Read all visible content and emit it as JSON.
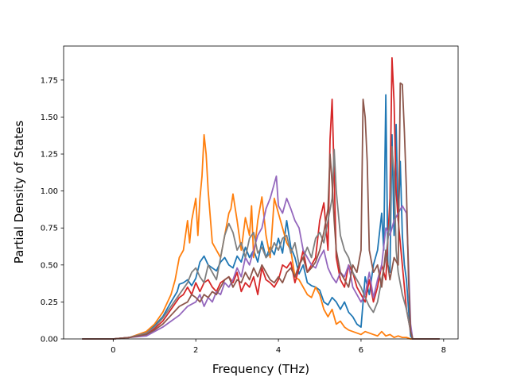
{
  "chart_data": {
    "type": "line",
    "title": "",
    "xlabel": "Frequency (THz)",
    "ylabel": "Partial Density of States",
    "xlim": [
      -1.2,
      8.35
    ],
    "ylim": [
      0.0,
      1.98
    ],
    "xticks": [
      0,
      2,
      4,
      6,
      8
    ],
    "xtick_labels": [
      "0",
      "2",
      "4",
      "6",
      "8"
    ],
    "yticks": [
      0.0,
      0.25,
      0.5,
      0.75,
      1.0,
      1.25,
      1.5,
      1.75
    ],
    "ytick_labels": [
      "0.00",
      "0.25",
      "0.50",
      "0.75",
      "1.00",
      "1.25",
      "1.50",
      "1.75"
    ],
    "grid": false,
    "legend": "none",
    "series": [
      {
        "color": "#1f77b4",
        "x": [
          -0.75,
          0,
          0.4,
          0.8,
          1.0,
          1.2,
          1.4,
          1.55,
          1.6,
          1.7,
          1.8,
          1.9,
          2.0,
          2.1,
          2.2,
          2.3,
          2.4,
          2.5,
          2.6,
          2.7,
          2.8,
          2.9,
          3.0,
          3.1,
          3.2,
          3.3,
          3.4,
          3.5,
          3.6,
          3.7,
          3.8,
          3.9,
          4.0,
          4.1,
          4.2,
          4.3,
          4.4,
          4.5,
          4.6,
          4.7,
          4.8,
          4.9,
          5.0,
          5.1,
          5.2,
          5.3,
          5.4,
          5.5,
          5.6,
          5.7,
          5.8,
          5.9,
          6.0,
          6.1,
          6.2,
          6.3,
          6.4,
          6.5,
          6.55,
          6.6,
          6.65,
          6.7,
          6.75,
          6.8,
          6.85,
          6.9,
          6.95,
          7.0,
          7.05,
          7.1,
          7.15,
          7.2,
          7.25,
          7.9
        ],
        "y": [
          0,
          0,
          0.01,
          0.04,
          0.09,
          0.15,
          0.25,
          0.32,
          0.37,
          0.38,
          0.4,
          0.36,
          0.41,
          0.52,
          0.56,
          0.5,
          0.48,
          0.46,
          0.52,
          0.55,
          0.5,
          0.48,
          0.56,
          0.52,
          0.62,
          0.55,
          0.6,
          0.52,
          0.66,
          0.55,
          0.62,
          0.57,
          0.68,
          0.58,
          0.8,
          0.62,
          0.55,
          0.44,
          0.5,
          0.38,
          0.36,
          0.35,
          0.33,
          0.25,
          0.23,
          0.28,
          0.25,
          0.2,
          0.25,
          0.18,
          0.15,
          0.1,
          0.08,
          0.42,
          0.3,
          0.5,
          0.6,
          0.85,
          0.6,
          1.65,
          0.5,
          0.45,
          1.38,
          0.7,
          1.45,
          0.8,
          1.2,
          0.7,
          0.5,
          0.4,
          0.2,
          0.02,
          0,
          0
        ]
      },
      {
        "color": "#ff7f0e",
        "x": [
          -0.75,
          0,
          0.4,
          0.8,
          1.0,
          1.2,
          1.4,
          1.5,
          1.6,
          1.7,
          1.8,
          1.85,
          1.9,
          2.0,
          2.05,
          2.1,
          2.15,
          2.2,
          2.25,
          2.3,
          2.4,
          2.5,
          2.6,
          2.7,
          2.8,
          2.85,
          2.9,
          3.0,
          3.1,
          3.2,
          3.3,
          3.35,
          3.4,
          3.5,
          3.6,
          3.7,
          3.8,
          3.9,
          4.0,
          4.1,
          4.2,
          4.3,
          4.4,
          4.5,
          4.6,
          4.7,
          4.8,
          4.9,
          5.0,
          5.1,
          5.2,
          5.3,
          5.4,
          5.5,
          5.6,
          5.7,
          5.8,
          5.9,
          6.0,
          6.1,
          6.2,
          6.3,
          6.4,
          6.5,
          6.6,
          6.7,
          6.8,
          6.9,
          7.0,
          7.1,
          7.2,
          7.25,
          7.9
        ],
        "y": [
          0,
          0,
          0.01,
          0.05,
          0.1,
          0.18,
          0.3,
          0.4,
          0.55,
          0.6,
          0.8,
          0.65,
          0.8,
          0.95,
          0.7,
          0.95,
          1.1,
          1.38,
          1.25,
          1.0,
          0.65,
          0.6,
          0.55,
          0.7,
          0.85,
          0.88,
          0.98,
          0.8,
          0.6,
          0.82,
          0.7,
          0.9,
          0.55,
          0.8,
          0.96,
          0.7,
          0.55,
          0.95,
          0.85,
          0.75,
          0.65,
          0.6,
          0.42,
          0.4,
          0.35,
          0.3,
          0.28,
          0.35,
          0.3,
          0.2,
          0.15,
          0.2,
          0.1,
          0.12,
          0.08,
          0.06,
          0.05,
          0.04,
          0.03,
          0.05,
          0.04,
          0.03,
          0.02,
          0.05,
          0.02,
          0.03,
          0.01,
          0.02,
          0.01,
          0.01,
          0,
          0,
          0
        ]
      },
      {
        "color": "#d62728",
        "x": [
          -0.75,
          0,
          0.4,
          0.8,
          1.0,
          1.2,
          1.4,
          1.6,
          1.7,
          1.8,
          1.9,
          2.0,
          2.1,
          2.2,
          2.3,
          2.4,
          2.5,
          2.6,
          2.7,
          2.8,
          2.9,
          3.0,
          3.1,
          3.2,
          3.3,
          3.4,
          3.5,
          3.6,
          3.7,
          3.8,
          3.9,
          4.0,
          4.1,
          4.2,
          4.3,
          4.4,
          4.5,
          4.6,
          4.7,
          4.8,
          4.9,
          5.0,
          5.1,
          5.2,
          5.25,
          5.3,
          5.35,
          5.4,
          5.5,
          5.6,
          5.7,
          5.8,
          5.9,
          6.0,
          6.1,
          6.2,
          6.3,
          6.4,
          6.5,
          6.6,
          6.7,
          6.75,
          6.8,
          6.85,
          6.9,
          7.0,
          7.1,
          7.2,
          7.25,
          7.9
        ],
        "y": [
          0,
          0,
          0.01,
          0.03,
          0.07,
          0.12,
          0.2,
          0.28,
          0.3,
          0.35,
          0.3,
          0.38,
          0.32,
          0.38,
          0.4,
          0.35,
          0.32,
          0.38,
          0.4,
          0.42,
          0.38,
          0.45,
          0.32,
          0.38,
          0.35,
          0.42,
          0.3,
          0.48,
          0.4,
          0.38,
          0.35,
          0.4,
          0.5,
          0.48,
          0.52,
          0.38,
          0.48,
          0.6,
          0.45,
          0.5,
          0.55,
          0.8,
          0.92,
          0.6,
          1.35,
          1.62,
          1.1,
          0.55,
          0.4,
          0.35,
          0.5,
          0.45,
          0.35,
          0.3,
          0.25,
          0.4,
          0.25,
          0.35,
          0.5,
          0.4,
          0.95,
          1.9,
          1.6,
          1.0,
          0.8,
          0.5,
          0.2,
          0.05,
          0,
          0
        ]
      },
      {
        "color": "#9467bd",
        "x": [
          -0.75,
          0,
          0.4,
          0.8,
          1.0,
          1.2,
          1.4,
          1.6,
          1.8,
          2.0,
          2.1,
          2.2,
          2.3,
          2.4,
          2.5,
          2.6,
          2.7,
          2.8,
          2.9,
          3.0,
          3.1,
          3.2,
          3.3,
          3.4,
          3.5,
          3.6,
          3.7,
          3.8,
          3.9,
          3.95,
          4.0,
          4.1,
          4.2,
          4.3,
          4.4,
          4.5,
          4.6,
          4.7,
          4.8,
          4.9,
          5.0,
          5.1,
          5.2,
          5.3,
          5.4,
          5.5,
          5.6,
          5.7,
          5.8,
          5.9,
          6.0,
          6.1,
          6.2,
          6.3,
          6.4,
          6.5,
          6.6,
          6.7,
          6.8,
          6.9,
          7.0,
          7.1,
          7.15,
          7.2,
          7.25,
          7.9
        ],
        "y": [
          0,
          0,
          0.01,
          0.02,
          0.05,
          0.08,
          0.12,
          0.16,
          0.22,
          0.25,
          0.3,
          0.22,
          0.28,
          0.25,
          0.32,
          0.3,
          0.38,
          0.35,
          0.4,
          0.48,
          0.42,
          0.55,
          0.5,
          0.6,
          0.7,
          0.75,
          0.88,
          0.95,
          1.05,
          1.1,
          0.9,
          0.85,
          0.95,
          0.88,
          0.8,
          0.75,
          0.6,
          0.55,
          0.5,
          0.48,
          0.55,
          0.6,
          0.48,
          0.42,
          0.38,
          0.45,
          0.42,
          0.5,
          0.35,
          0.3,
          0.25,
          0.3,
          0.45,
          0.28,
          0.4,
          0.5,
          0.75,
          0.7,
          0.8,
          0.85,
          0.9,
          0.85,
          0.5,
          0.1,
          0,
          0
        ]
      },
      {
        "color": "#7f7f7f",
        "x": [
          -0.75,
          0,
          0.4,
          0.8,
          1.0,
          1.2,
          1.4,
          1.6,
          1.8,
          1.9,
          2.0,
          2.1,
          2.2,
          2.3,
          2.4,
          2.5,
          2.6,
          2.7,
          2.8,
          2.9,
          3.0,
          3.1,
          3.2,
          3.3,
          3.4,
          3.5,
          3.6,
          3.7,
          3.8,
          3.9,
          4.0,
          4.1,
          4.2,
          4.3,
          4.4,
          4.5,
          4.6,
          4.7,
          4.8,
          4.9,
          5.0,
          5.1,
          5.2,
          5.3,
          5.35,
          5.4,
          5.5,
          5.6,
          5.7,
          5.8,
          5.9,
          6.0,
          6.1,
          6.2,
          6.3,
          6.4,
          6.5,
          6.6,
          6.7,
          6.75,
          6.8,
          6.85,
          6.9,
          7.0,
          7.1,
          7.2,
          7.25,
          7.9
        ],
        "y": [
          0,
          0,
          0.01,
          0.04,
          0.08,
          0.14,
          0.22,
          0.3,
          0.38,
          0.45,
          0.48,
          0.42,
          0.38,
          0.5,
          0.45,
          0.4,
          0.55,
          0.7,
          0.78,
          0.72,
          0.6,
          0.65,
          0.55,
          0.68,
          0.72,
          0.58,
          0.62,
          0.55,
          0.58,
          0.65,
          0.6,
          0.68,
          0.7,
          0.58,
          0.65,
          0.5,
          0.55,
          0.62,
          0.55,
          0.68,
          0.72,
          0.65,
          0.8,
          0.95,
          1.28,
          1.0,
          0.7,
          0.6,
          0.55,
          0.45,
          0.4,
          0.35,
          0.28,
          0.22,
          0.18,
          0.25,
          0.4,
          0.55,
          0.8,
          1.3,
          1.1,
          0.6,
          0.45,
          0.3,
          0.2,
          0.05,
          0,
          0
        ]
      },
      {
        "color": "#8c564b",
        "x": [
          -0.75,
          0,
          0.4,
          0.8,
          1.0,
          1.2,
          1.4,
          1.6,
          1.8,
          1.9,
          2.0,
          2.1,
          2.2,
          2.3,
          2.4,
          2.5,
          2.6,
          2.7,
          2.8,
          2.9,
          3.0,
          3.1,
          3.2,
          3.3,
          3.4,
          3.5,
          3.6,
          3.7,
          3.8,
          3.9,
          4.0,
          4.1,
          4.2,
          4.3,
          4.4,
          4.5,
          4.6,
          4.7,
          4.8,
          4.9,
          5.0,
          5.1,
          5.2,
          5.25,
          5.3,
          5.35,
          5.4,
          5.5,
          5.6,
          5.7,
          5.8,
          5.9,
          6.0,
          6.05,
          6.1,
          6.15,
          6.2,
          6.3,
          6.4,
          6.5,
          6.6,
          6.7,
          6.8,
          6.9,
          6.95,
          7.0,
          7.05,
          7.1,
          7.15,
          7.2,
          7.25,
          7.9
        ],
        "y": [
          0,
          0,
          0.01,
          0.03,
          0.06,
          0.1,
          0.16,
          0.22,
          0.25,
          0.3,
          0.28,
          0.25,
          0.3,
          0.28,
          0.32,
          0.3,
          0.35,
          0.4,
          0.42,
          0.35,
          0.4,
          0.38,
          0.45,
          0.4,
          0.48,
          0.42,
          0.5,
          0.45,
          0.4,
          0.38,
          0.42,
          0.38,
          0.45,
          0.48,
          0.42,
          0.5,
          0.55,
          0.45,
          0.48,
          0.52,
          0.6,
          0.72,
          0.88,
          1.25,
          1.05,
          0.8,
          0.6,
          0.45,
          0.4,
          0.35,
          0.5,
          0.45,
          0.6,
          1.62,
          1.5,
          1.2,
          0.6,
          0.45,
          0.5,
          0.35,
          0.6,
          0.4,
          0.55,
          0.5,
          1.73,
          1.72,
          1.4,
          1.0,
          0.4,
          0.05,
          0,
          0
        ]
      }
    ]
  }
}
